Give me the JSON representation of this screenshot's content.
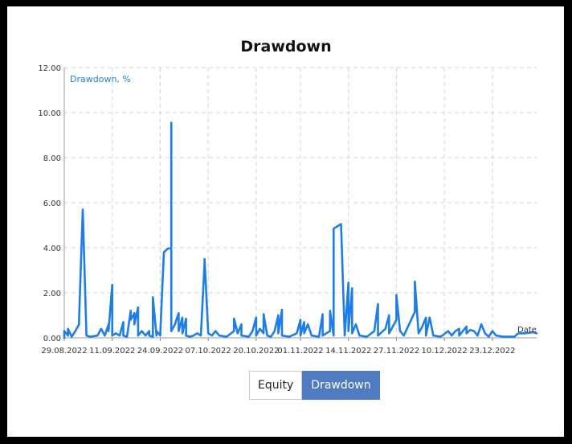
{
  "chart_data": {
    "type": "line",
    "title": "Drawdown",
    "series_label": "Drawdown, %",
    "xlabel": "Date",
    "ylim": [
      0,
      12
    ],
    "yticks": [
      "0.00",
      "2.00",
      "4.00",
      "6.00",
      "8.00",
      "10.00",
      "12.00"
    ],
    "xticks": [
      "29.08.2022",
      "11.09.2022",
      "24.09.2022",
      "07.10.2022",
      "20.10.2022",
      "01.11.2022",
      "14.11.2022",
      "27.11.2022",
      "10.12.2022",
      "23.12.2022"
    ],
    "x_start": "2022-08-29",
    "x_end": "2023-01-04",
    "grid": true,
    "color": "#1e7de6",
    "points": [
      [
        "2022-08-29",
        0.0
      ],
      [
        "2022-08-29",
        0.3
      ],
      [
        "2022-08-30",
        0.1
      ],
      [
        "2022-08-30",
        0.4
      ],
      [
        "2022-08-31",
        0.05
      ],
      [
        "2022-09-01",
        0.3
      ],
      [
        "2022-09-02",
        0.6
      ],
      [
        "2022-09-02",
        0.8
      ],
      [
        "2022-09-03",
        5.7
      ],
      [
        "2022-09-04",
        0.1
      ],
      [
        "2022-09-05",
        0.05
      ],
      [
        "2022-09-07",
        0.1
      ],
      [
        "2022-09-08",
        0.4
      ],
      [
        "2022-09-09",
        0.1
      ],
      [
        "2022-09-10",
        0.6
      ],
      [
        "2022-09-10",
        0.3
      ],
      [
        "2022-09-11",
        2.35
      ],
      [
        "2022-09-11",
        0.1
      ],
      [
        "2022-09-12",
        0.2
      ],
      [
        "2022-09-13",
        0.1
      ],
      [
        "2022-09-14",
        0.7
      ],
      [
        "2022-09-14",
        0.1
      ],
      [
        "2022-09-15",
        0.05
      ],
      [
        "2022-09-16",
        1.2
      ],
      [
        "2022-09-16",
        0.8
      ],
      [
        "2022-09-17",
        1.1
      ],
      [
        "2022-09-17",
        0.6
      ],
      [
        "2022-09-18",
        1.35
      ],
      [
        "2022-09-18",
        0.1
      ],
      [
        "2022-09-19",
        0.3
      ],
      [
        "2022-09-20",
        0.1
      ],
      [
        "2022-09-21",
        0.3
      ],
      [
        "2022-09-21",
        0.1
      ],
      [
        "2022-09-22",
        0.05
      ],
      [
        "2022-09-22",
        1.8
      ],
      [
        "2022-09-23",
        0.1
      ],
      [
        "2022-09-23",
        0.3
      ],
      [
        "2022-09-24",
        0.1
      ],
      [
        "2022-09-25",
        3.8
      ],
      [
        "2022-09-26",
        3.95
      ],
      [
        "2022-09-27",
        4.0
      ],
      [
        "2022-09-27",
        9.55
      ],
      [
        "2022-09-27",
        0.3
      ],
      [
        "2022-09-28",
        0.6
      ],
      [
        "2022-09-29",
        1.1
      ],
      [
        "2022-09-29",
        0.3
      ],
      [
        "2022-09-30",
        0.9
      ],
      [
        "2022-09-30",
        0.2
      ],
      [
        "2022-10-01",
        0.85
      ],
      [
        "2022-10-01",
        0.1
      ],
      [
        "2022-10-02",
        0.05
      ],
      [
        "2022-10-03",
        0.1
      ],
      [
        "2022-10-04",
        0.2
      ],
      [
        "2022-10-05",
        0.1
      ],
      [
        "2022-10-06",
        3.3
      ],
      [
        "2022-10-06",
        3.5
      ],
      [
        "2022-10-07",
        0.2
      ],
      [
        "2022-10-08",
        0.1
      ],
      [
        "2022-10-09",
        0.3
      ],
      [
        "2022-10-10",
        0.1
      ],
      [
        "2022-10-12",
        0.05
      ],
      [
        "2022-10-14",
        0.3
      ],
      [
        "2022-10-14",
        0.85
      ],
      [
        "2022-10-15",
        0.2
      ],
      [
        "2022-10-16",
        0.6
      ],
      [
        "2022-10-16",
        0.1
      ],
      [
        "2022-10-18",
        0.05
      ],
      [
        "2022-10-19",
        0.3
      ],
      [
        "2022-10-20",
        0.9
      ],
      [
        "2022-10-20",
        0.1
      ],
      [
        "2022-10-21",
        0.4
      ],
      [
        "2022-10-22",
        0.2
      ],
      [
        "2022-10-22",
        1.05
      ],
      [
        "2022-10-23",
        0.1
      ],
      [
        "2022-10-24",
        0.05
      ],
      [
        "2022-10-25",
        0.3
      ],
      [
        "2022-10-26",
        1.0
      ],
      [
        "2022-10-26",
        0.2
      ],
      [
        "2022-10-27",
        1.25
      ],
      [
        "2022-10-27",
        0.1
      ],
      [
        "2022-10-29",
        0.05
      ],
      [
        "2022-10-31",
        0.2
      ],
      [
        "2022-11-01",
        0.8
      ],
      [
        "2022-11-01",
        0.1
      ],
      [
        "2022-11-02",
        0.7
      ],
      [
        "2022-11-02",
        0.2
      ],
      [
        "2022-11-03",
        0.6
      ],
      [
        "2022-11-04",
        0.1
      ],
      [
        "2022-11-06",
        0.05
      ],
      [
        "2022-11-07",
        1.05
      ],
      [
        "2022-11-07",
        0.1
      ],
      [
        "2022-11-09",
        0.3
      ],
      [
        "2022-11-09",
        1.2
      ],
      [
        "2022-11-10",
        0.1
      ],
      [
        "2022-11-10",
        4.85
      ],
      [
        "2022-11-11",
        4.95
      ],
      [
        "2022-11-12",
        5.05
      ],
      [
        "2022-11-13",
        0.1
      ],
      [
        "2022-11-14",
        2.45
      ],
      [
        "2022-11-14",
        0.3
      ],
      [
        "2022-11-15",
        2.2
      ],
      [
        "2022-11-15",
        0.2
      ],
      [
        "2022-11-16",
        0.6
      ],
      [
        "2022-11-17",
        0.1
      ],
      [
        "2022-11-19",
        0.05
      ],
      [
        "2022-11-21",
        0.3
      ],
      [
        "2022-11-22",
        1.5
      ],
      [
        "2022-11-22",
        0.1
      ],
      [
        "2022-11-24",
        0.4
      ],
      [
        "2022-11-25",
        1.0
      ],
      [
        "2022-11-25",
        0.2
      ],
      [
        "2022-11-27",
        0.8
      ],
      [
        "2022-11-27",
        1.9
      ],
      [
        "2022-11-28",
        0.3
      ],
      [
        "2022-11-29",
        0.1
      ],
      [
        "2022-12-01",
        0.8
      ],
      [
        "2022-12-02",
        1.15
      ],
      [
        "2022-12-02",
        2.5
      ],
      [
        "2022-12-03",
        0.2
      ],
      [
        "2022-12-04",
        0.5
      ],
      [
        "2022-12-05",
        0.9
      ],
      [
        "2022-12-05",
        0.1
      ],
      [
        "2022-12-06",
        0.9
      ],
      [
        "2022-12-07",
        0.1
      ],
      [
        "2022-12-09",
        0.05
      ],
      [
        "2022-12-11",
        0.3
      ],
      [
        "2022-12-12",
        0.1
      ],
      [
        "2022-12-13",
        0.3
      ],
      [
        "2022-12-14",
        0.4
      ],
      [
        "2022-12-14",
        0.1
      ],
      [
        "2022-12-16",
        0.5
      ],
      [
        "2022-12-16",
        0.2
      ],
      [
        "2022-12-17",
        0.35
      ],
      [
        "2022-12-18",
        0.3
      ],
      [
        "2022-12-19",
        0.1
      ],
      [
        "2022-12-20",
        0.6
      ],
      [
        "2022-12-21",
        0.2
      ],
      [
        "2022-12-22",
        0.05
      ],
      [
        "2022-12-23",
        0.3
      ],
      [
        "2022-12-24",
        0.1
      ],
      [
        "2022-12-26",
        0.05
      ],
      [
        "2022-12-29",
        0.05
      ],
      [
        "2022-12-30",
        0.2
      ],
      [
        "2023-01-01",
        0.2
      ],
      [
        "2023-01-03",
        0.25
      ],
      [
        "2023-01-04",
        0.2
      ]
    ]
  },
  "tabs": [
    {
      "label": "Equity",
      "active": false
    },
    {
      "label": "Drawdown",
      "active": true
    }
  ]
}
